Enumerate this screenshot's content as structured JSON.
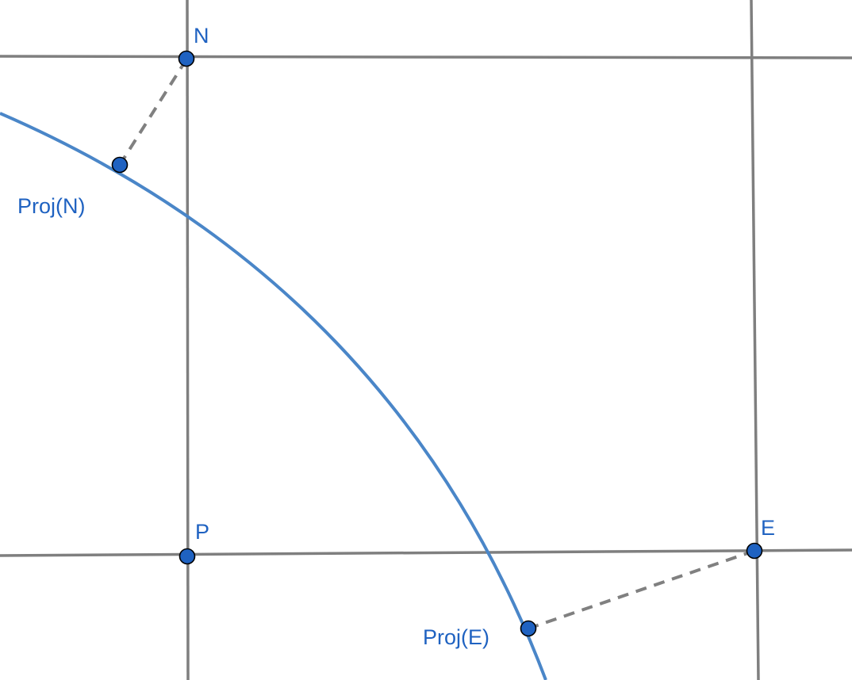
{
  "labels": {
    "N": "N",
    "P": "P",
    "E": "E",
    "proj_N": "Proj(N)",
    "proj_E": "Proj(E)"
  },
  "colors": {
    "point_fill": "#1f62c1",
    "label_text": "#1f62c1",
    "arc": "#4a86c8",
    "grid_line": "#7f7f7f",
    "projection_line": "#808080",
    "background": "#ffffff"
  }
}
